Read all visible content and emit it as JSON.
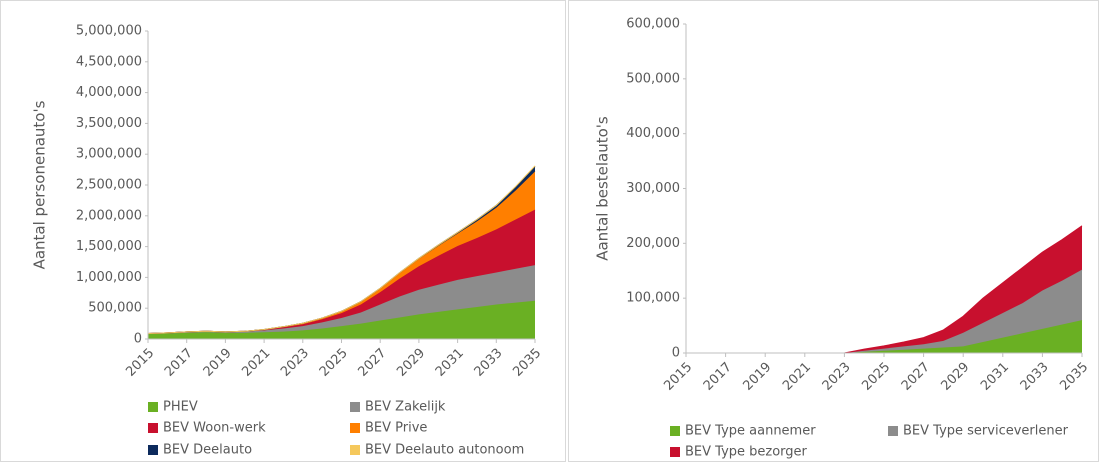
{
  "chart_data": [
    {
      "type": "area",
      "stacked": true,
      "y_label": "Aantal personenauto's",
      "x": [
        2015,
        2016,
        2017,
        2018,
        2019,
        2020,
        2021,
        2022,
        2023,
        2024,
        2025,
        2026,
        2027,
        2028,
        2029,
        2030,
        2031,
        2032,
        2033,
        2034,
        2035
      ],
      "xlim": [
        2015,
        2035
      ],
      "xticks": [
        2015,
        2017,
        2019,
        2021,
        2023,
        2025,
        2027,
        2029,
        2031,
        2033,
        2035
      ],
      "ylim": [
        0,
        5000000
      ],
      "yticks": [
        0,
        {
          "value": 500000,
          "label": "500,000"
        },
        {
          "value": 1000000,
          "label": "1,000,000"
        },
        {
          "value": 1500000,
          "label": "1,500,000"
        },
        {
          "value": 2000000,
          "label": "2,000,000"
        },
        {
          "value": 2500000,
          "label": "2,500,000"
        },
        {
          "value": 3000000,
          "label": "3,000,000"
        },
        {
          "value": 3500000,
          "label": "3,500,000"
        },
        {
          "value": 4000000,
          "label": "4,000,000"
        },
        {
          "value": 4500000,
          "label": "4,500,000"
        },
        {
          "value": 5000000,
          "label": "5,000,000"
        }
      ],
      "series": [
        {
          "name": "PHEV",
          "color": "#6ab023",
          "values": [
            80000,
            90000,
            100000,
            110000,
            100000,
            100000,
            110000,
            120000,
            140000,
            170000,
            210000,
            250000,
            300000,
            350000,
            400000,
            440000,
            480000,
            520000,
            560000,
            590000,
            620000
          ]
        },
        {
          "name": "BEV Zakelijk",
          "color": "#8c8c8c",
          "values": [
            10000,
            10000,
            15000,
            15000,
            15000,
            20000,
            30000,
            50000,
            70000,
            100000,
            130000,
            180000,
            260000,
            340000,
            400000,
            440000,
            480000,
            500000,
            520000,
            550000,
            580000
          ]
        },
        {
          "name": "BEV Woon-werk",
          "color": "#c8102e",
          "values": [
            0,
            0,
            0,
            0,
            0,
            5000,
            10000,
            20000,
            30000,
            50000,
            80000,
            130000,
            200000,
            290000,
            380000,
            470000,
            550000,
            620000,
            700000,
            800000,
            900000
          ]
        },
        {
          "name": "BEV Prive",
          "color": "#ff7f00",
          "values": [
            0,
            0,
            0,
            0,
            0,
            0,
            5000,
            10000,
            15000,
            20000,
            30000,
            45000,
            60000,
            90000,
            120000,
            160000,
            200000,
            270000,
            350000,
            470000,
            620000
          ]
        },
        {
          "name": "BEV Deelauto",
          "color": "#0c2a5c",
          "values": [
            0,
            0,
            0,
            0,
            0,
            0,
            0,
            0,
            0,
            0,
            0,
            2000,
            4000,
            6000,
            10000,
            15000,
            20000,
            30000,
            40000,
            60000,
            80000
          ]
        },
        {
          "name": "BEV Deelauto autonoom",
          "color": "#f5c85c",
          "values": [
            0,
            0,
            0,
            0,
            0,
            0,
            0,
            0,
            0,
            0,
            0,
            0,
            0,
            0,
            0,
            0,
            0,
            0,
            0,
            5000,
            10000
          ]
        }
      ]
    },
    {
      "type": "area",
      "stacked": true,
      "y_label": "Aantal bestelauto's",
      "x": [
        2015,
        2016,
        2017,
        2018,
        2019,
        2020,
        2021,
        2022,
        2023,
        2024,
        2025,
        2026,
        2027,
        2028,
        2029,
        2030,
        2031,
        2032,
        2033,
        2034,
        2035
      ],
      "xlim": [
        2015,
        2035
      ],
      "xticks": [
        2015,
        2017,
        2019,
        2021,
        2023,
        2025,
        2027,
        2029,
        2031,
        2033,
        2035
      ],
      "ylim": [
        0,
        600000
      ],
      "yticks": [
        0,
        {
          "value": 100000,
          "label": "100,000"
        },
        {
          "value": 200000,
          "label": "200,000"
        },
        {
          "value": 300000,
          "label": "300,000"
        },
        {
          "value": 400000,
          "label": "400,000"
        },
        {
          "value": 500000,
          "label": "500,000"
        },
        {
          "value": 600000,
          "label": "600,000"
        }
      ],
      "series": [
        {
          "name": "BEV Type aannemer",
          "color": "#6ab023",
          "values": [
            0,
            0,
            0,
            0,
            0,
            0,
            0,
            0,
            0,
            2000,
            4000,
            6000,
            8000,
            10000,
            12000,
            20000,
            28000,
            36000,
            44000,
            52000,
            60000
          ]
        },
        {
          "name": "BEV Type serviceverlener",
          "color": "#8c8c8c",
          "values": [
            0,
            0,
            0,
            0,
            0,
            0,
            0,
            0,
            0,
            2000,
            4000,
            6000,
            8000,
            12000,
            25000,
            35000,
            45000,
            55000,
            70000,
            80000,
            92000
          ]
        },
        {
          "name": "BEV Type bezorger",
          "color": "#c8102e",
          "values": [
            0,
            0,
            0,
            0,
            0,
            0,
            0,
            0,
            0,
            3000,
            5000,
            8000,
            12000,
            20000,
            30000,
            45000,
            55000,
            65000,
            70000,
            75000,
            80000
          ]
        }
      ]
    }
  ]
}
